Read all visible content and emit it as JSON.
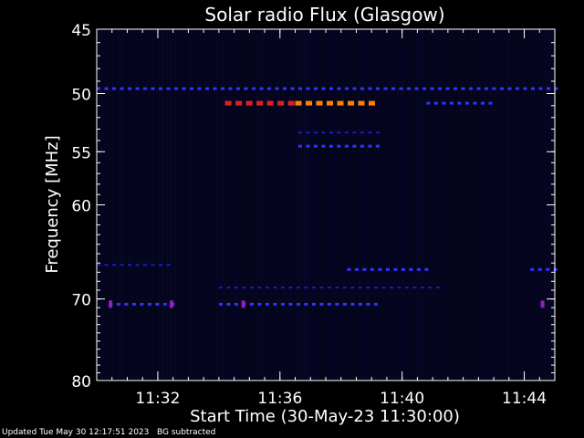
{
  "chart_data": {
    "type": "heatmap",
    "title": "Solar radio Flux (Glasgow)",
    "xlabel": "Start Time (30-May-23 11:30:00)",
    "ylabel": "Frequency [MHz]",
    "x_range_minutes": [
      0,
      15
    ],
    "x_ticks": [
      {
        "minute": 2,
        "label": "11:32"
      },
      {
        "minute": 6,
        "label": "11:36"
      },
      {
        "minute": 10,
        "label": "11:40"
      },
      {
        "minute": 14,
        "label": "11:44"
      }
    ],
    "y_range_mhz": [
      45,
      80
    ],
    "y_scale": "log",
    "y_ticks": [
      {
        "mhz": 45,
        "label": "45"
      },
      {
        "mhz": 50,
        "label": "50"
      },
      {
        "mhz": 55,
        "label": "55"
      },
      {
        "mhz": 60,
        "label": "60"
      },
      {
        "mhz": 70,
        "label": "70"
      },
      {
        "mhz": 80,
        "label": "80"
      }
    ],
    "colors": {
      "background": "#000000",
      "plot_background": "#05051a",
      "weak": "#1a1acc",
      "medium": "#3333ff",
      "strong": "#e02020",
      "strongest": "#ff8000",
      "purple": "#9020c0"
    },
    "features": [
      {
        "freq_mhz": 49.6,
        "minute_start": 0.0,
        "minute_end": 15.0,
        "level": "medium",
        "pattern": "dashed"
      },
      {
        "freq_mhz": 50.8,
        "minute_start": 4.2,
        "minute_end": 6.3,
        "level": "strong",
        "pattern": "dashed"
      },
      {
        "freq_mhz": 50.8,
        "minute_start": 6.5,
        "minute_end": 9.0,
        "level": "strongest",
        "pattern": "dashed"
      },
      {
        "freq_mhz": 50.8,
        "minute_start": 10.8,
        "minute_end": 13.0,
        "level": "medium",
        "pattern": "dashed"
      },
      {
        "freq_mhz": 53.3,
        "minute_start": 6.6,
        "minute_end": 9.2,
        "level": "weak",
        "pattern": "dashed"
      },
      {
        "freq_mhz": 54.5,
        "minute_start": 6.6,
        "minute_end": 9.2,
        "level": "medium",
        "pattern": "dashed"
      },
      {
        "freq_mhz": 66.2,
        "minute_start": 0.0,
        "minute_end": 2.5,
        "level": "weak",
        "pattern": "dashed"
      },
      {
        "freq_mhz": 66.7,
        "minute_start": 8.2,
        "minute_end": 10.9,
        "level": "medium",
        "pattern": "dashed"
      },
      {
        "freq_mhz": 66.7,
        "minute_start": 14.2,
        "minute_end": 15.0,
        "level": "medium",
        "pattern": "dashed"
      },
      {
        "freq_mhz": 68.7,
        "minute_start": 4.0,
        "minute_end": 11.2,
        "level": "weak",
        "pattern": "dashed"
      },
      {
        "freq_mhz": 70.6,
        "minute_start": 0.4,
        "minute_end": 2.6,
        "level": "medium",
        "pattern": "dashed"
      },
      {
        "freq_mhz": 70.6,
        "minute_start": 4.0,
        "minute_end": 9.2,
        "level": "medium",
        "pattern": "dashed"
      },
      {
        "freq_mhz": 70.6,
        "minute_start": 0.45,
        "minute_end": 0.55,
        "level": "purple",
        "pattern": "solid"
      },
      {
        "freq_mhz": 70.6,
        "minute_start": 2.45,
        "minute_end": 2.55,
        "level": "purple",
        "pattern": "solid"
      },
      {
        "freq_mhz": 70.6,
        "minute_start": 4.8,
        "minute_end": 4.9,
        "level": "purple",
        "pattern": "solid"
      },
      {
        "freq_mhz": 70.6,
        "minute_start": 14.6,
        "minute_end": 14.7,
        "level": "purple",
        "pattern": "solid"
      }
    ]
  },
  "footer": {
    "updated": "Updated Tue May 30 12:17:51 2023",
    "note": "BG subtracted"
  }
}
